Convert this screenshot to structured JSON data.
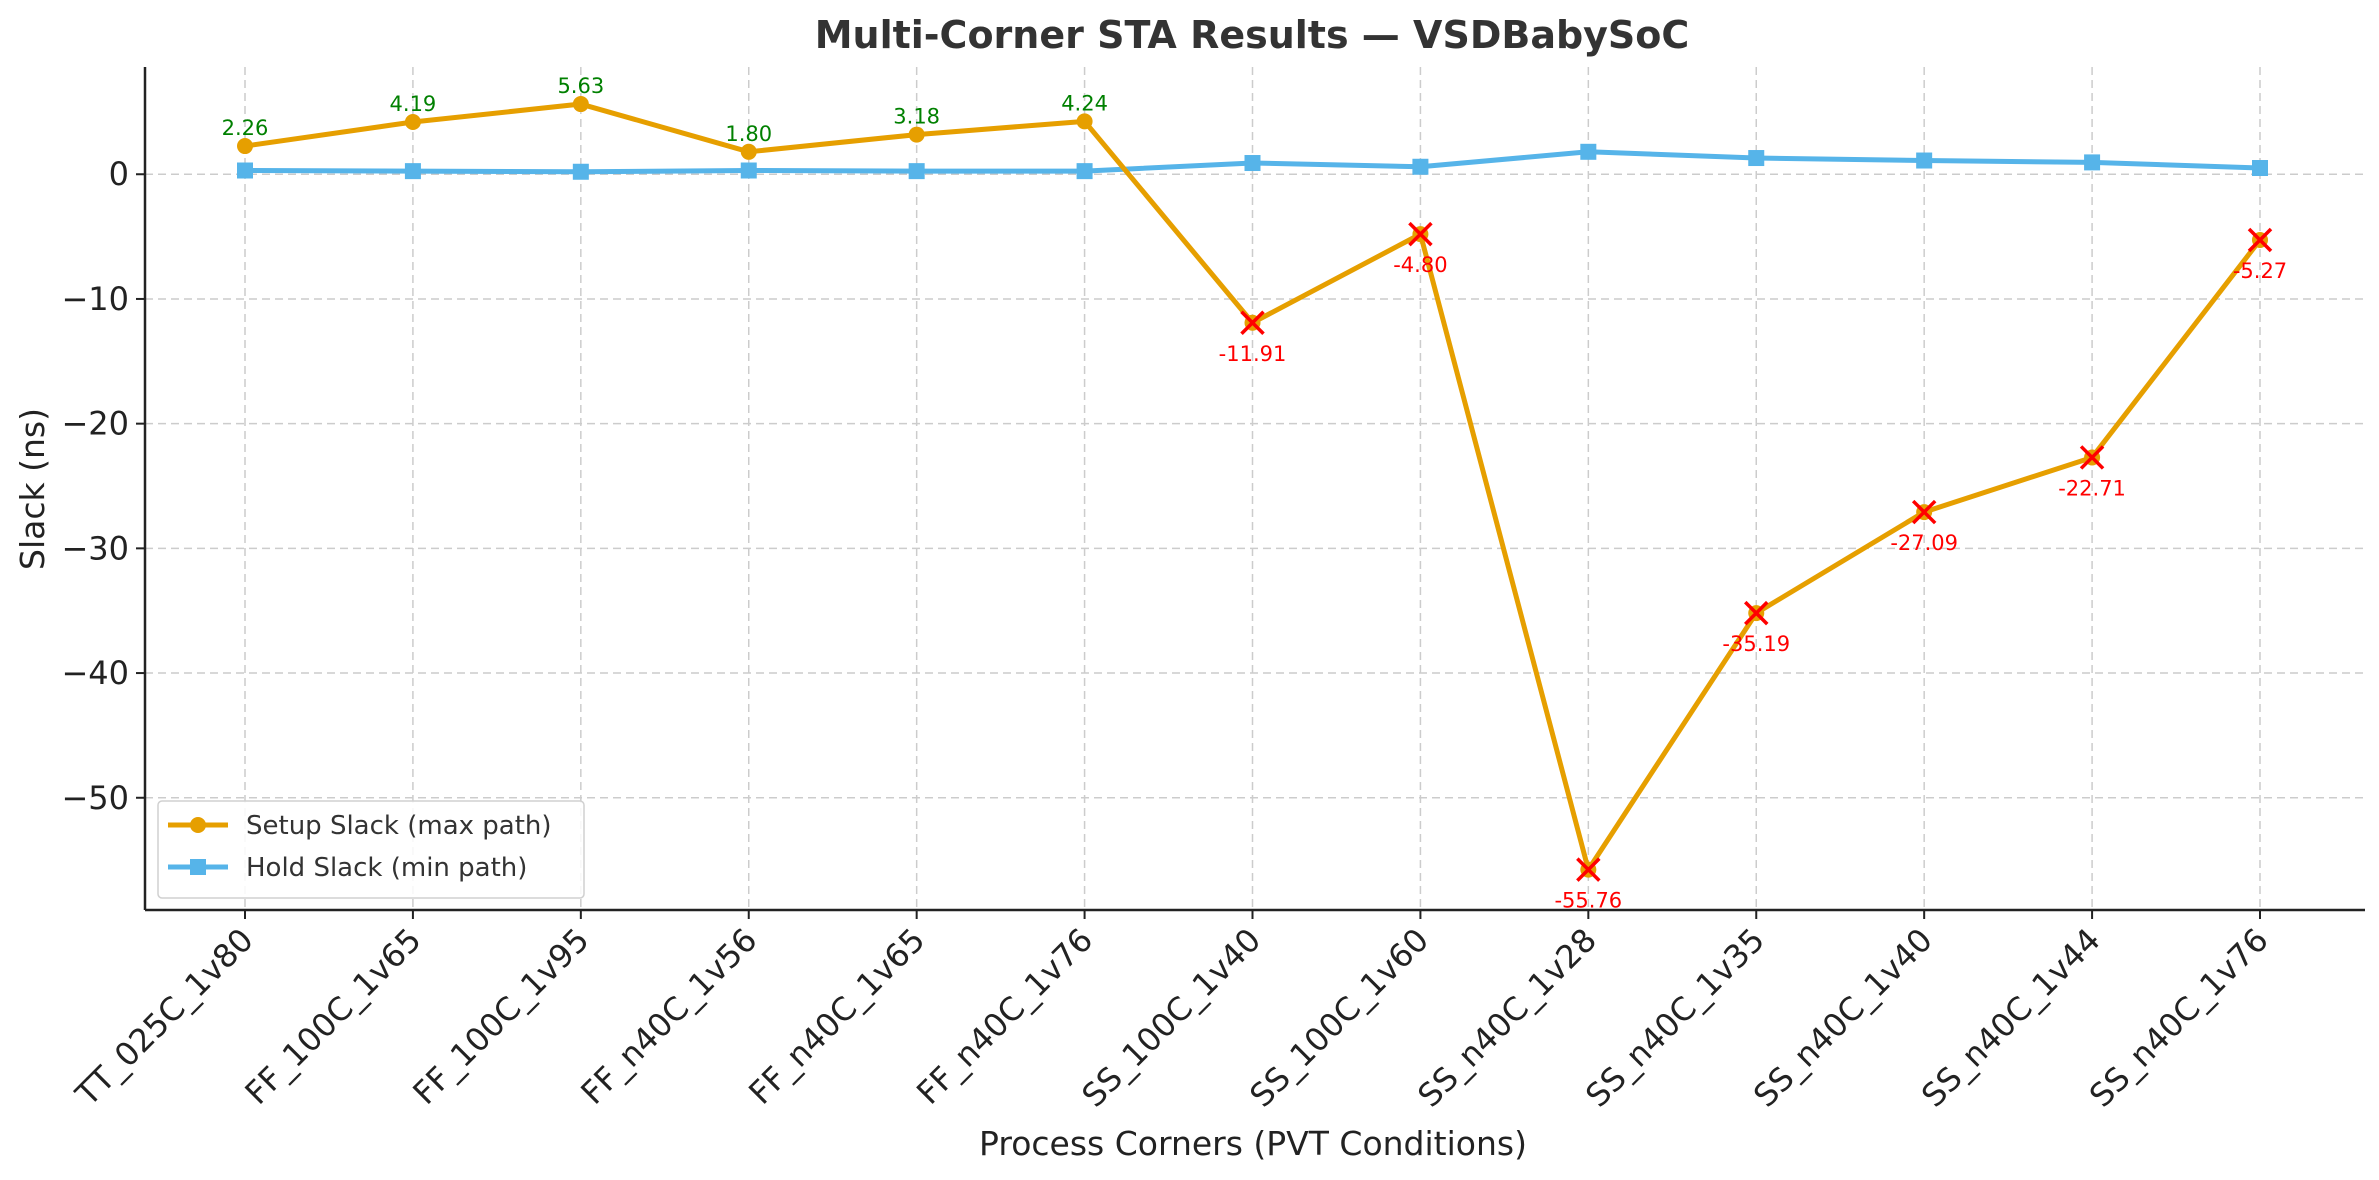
{
  "chart_data": {
    "type": "line",
    "title": "Multi-Corner STA Results — VSDBabySoC",
    "xlabel": "Process Corners (PVT Conditions)",
    "ylabel": "Slack (ns)",
    "categories": [
      "TT_025C_1v80",
      "FF_100C_1v65",
      "FF_100C_1v95",
      "FF_n40C_1v56",
      "FF_n40C_1v65",
      "FF_n40C_1v76",
      "SS_100C_1v40",
      "SS_100C_1v60",
      "SS_n40C_1v28",
      "SS_n40C_1v35",
      "SS_n40C_1v40",
      "SS_n40C_1v44",
      "SS_n40C_1v76"
    ],
    "ylim": [
      -59,
      8.6
    ],
    "yticks": [
      0,
      -10,
      -20,
      -30,
      -40,
      -50
    ],
    "ytick_labels": [
      "0",
      "−10",
      "−20",
      "−30",
      "−40",
      "−50"
    ],
    "grid": true,
    "legend_position": "lower-left",
    "series": [
      {
        "name": "Setup Slack (max path)",
        "color": "#E69F00",
        "marker": "circle",
        "values": [
          2.26,
          4.19,
          5.63,
          1.8,
          3.18,
          4.24,
          -11.91,
          -4.8,
          -55.76,
          -35.19,
          -27.09,
          -22.71,
          -5.27
        ],
        "labels": [
          "2.26",
          "4.19",
          "5.63",
          "1.80",
          "3.18",
          "4.24",
          "-11.91",
          "-4.80",
          "-55.76",
          "-35.19",
          "-27.09",
          "-22.71",
          "-5.27"
        ]
      },
      {
        "name": "Hold Slack (min path)",
        "color": "#56B4E9",
        "marker": "square",
        "values": [
          0.3,
          0.25,
          0.2,
          0.3,
          0.25,
          0.25,
          0.9,
          0.6,
          1.8,
          1.3,
          1.1,
          0.95,
          0.5
        ]
      }
    ],
    "positive_label_color": "#008000",
    "violation_color": "#FF0000"
  }
}
